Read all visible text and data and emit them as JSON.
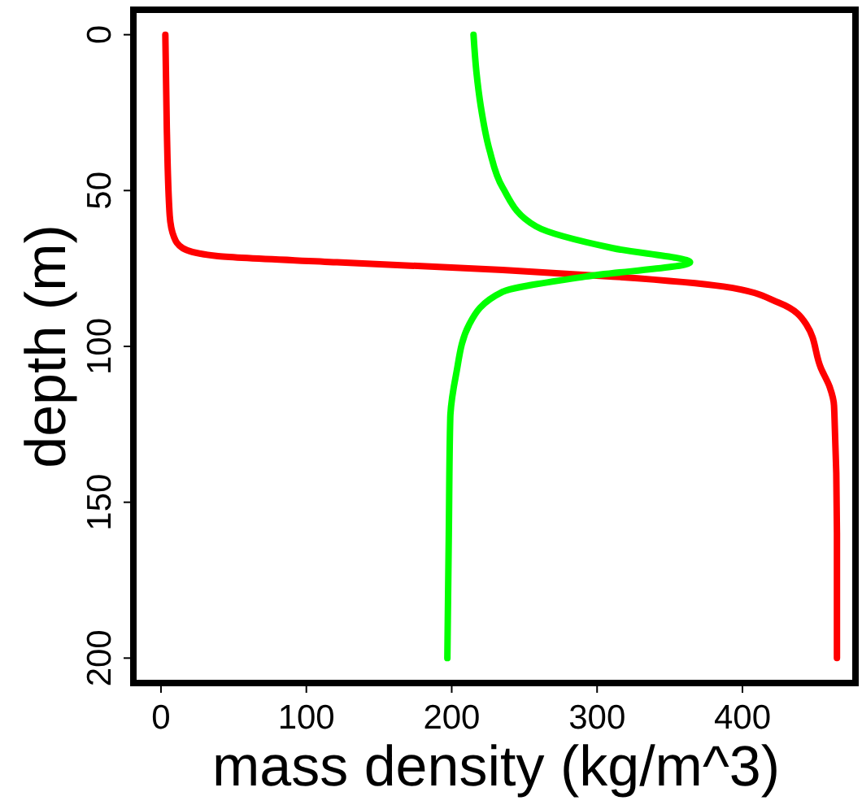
{
  "chart_data": {
    "type": "line",
    "xlabel": "mass density (kg/m^3)",
    "ylabel": "depth (m)",
    "xlim": [
      -19,
      480
    ],
    "ylim": [
      208,
      -8
    ],
    "xticks": [
      0,
      100,
      200,
      300,
      400
    ],
    "yticks": [
      0,
      50,
      100,
      150,
      200
    ],
    "grid": false,
    "line_style": "solid",
    "marker": "none",
    "series": [
      {
        "color": "#ff0000",
        "x": [
          3,
          4,
          6,
          9,
          15,
          38,
          121,
          235,
          311,
          387,
          425,
          444,
          454,
          460,
          463,
          465,
          465
        ],
        "values": [
          0,
          30,
          58,
          65,
          68.5,
          71,
          73,
          75.5,
          77.6,
          80.8,
          86,
          93,
          107,
          113,
          119,
          160,
          200
        ]
      },
      {
        "color": "#00ff00",
        "x": [
          215,
          217,
          220,
          226,
          235,
          258,
          311,
          364,
          292,
          235,
          212,
          203,
          199,
          198,
          197
        ],
        "values": [
          0,
          12,
          23,
          37,
          49,
          61.5,
          68.5,
          73,
          77.6,
          82.5,
          93,
          109,
          123,
          160,
          200
        ]
      }
    ]
  }
}
